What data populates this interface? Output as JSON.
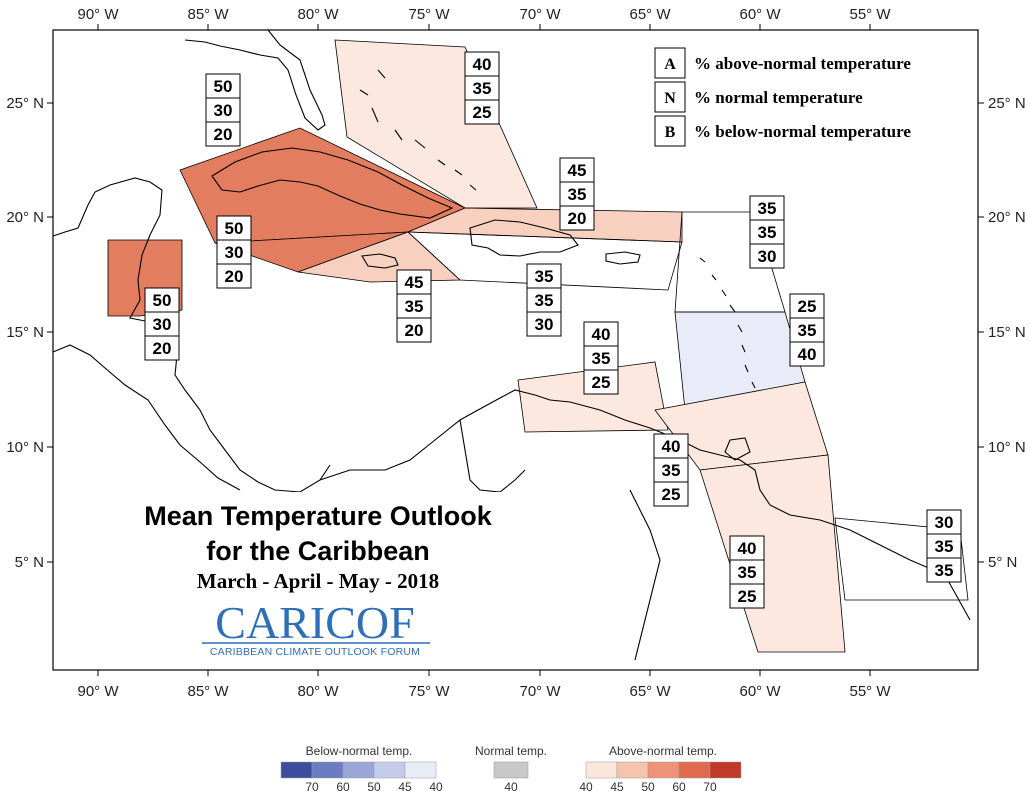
{
  "title_line1": "Mean Temperature Outlook",
  "title_line2": "for the Caribbean",
  "season": "March - April - May - 2018",
  "logo": {
    "main": "CARICOF",
    "sub": "CARIBBEAN CLIMATE OUTLOOK FORUM"
  },
  "axes": {
    "lon_labels": [
      "90° W",
      "85° W",
      "80° W",
      "75° W",
      "70° W",
      "65° W",
      "60° W",
      "55° W"
    ],
    "lat_labels": [
      "25° N",
      "20° N",
      "15° N",
      "10° N",
      "5° N"
    ]
  },
  "key": [
    {
      "letter": "A",
      "text": "% above-normal temperature"
    },
    {
      "letter": "N",
      "text": "% normal temperature"
    },
    {
      "letter": "B",
      "text": "% below-normal temperature"
    }
  ],
  "probability_boxes": [
    {
      "region": "bahamas",
      "values": [
        "40",
        "35",
        "25"
      ]
    },
    {
      "region": "cuba-west",
      "values": [
        "50",
        "30",
        "20"
      ]
    },
    {
      "region": "cuba-south",
      "values": [
        "50",
        "30",
        "20"
      ]
    },
    {
      "region": "belize",
      "values": [
        "50",
        "30",
        "20"
      ]
    },
    {
      "region": "jamaica",
      "values": [
        "45",
        "35",
        "20"
      ]
    },
    {
      "region": "turks-caicos",
      "values": [
        "45",
        "35",
        "20"
      ]
    },
    {
      "region": "hispaniola-pr",
      "values": [
        "35",
        "35",
        "30"
      ]
    },
    {
      "region": "northern-islands",
      "values": [
        "35",
        "35",
        "30"
      ]
    },
    {
      "region": "windward-islands",
      "values": [
        "25",
        "35",
        "40"
      ]
    },
    {
      "region": "abc-islands",
      "values": [
        "40",
        "35",
        "25"
      ]
    },
    {
      "region": "trinidad",
      "values": [
        "40",
        "35",
        "25"
      ]
    },
    {
      "region": "guyana",
      "values": [
        "40",
        "35",
        "25"
      ]
    },
    {
      "region": "french-guiana",
      "values": [
        "30",
        "35",
        "35"
      ]
    }
  ],
  "colorbar": {
    "below": {
      "label": "Below-normal temp.",
      "ticks": [
        "70",
        "60",
        "50",
        "45",
        "40"
      ],
      "colors": [
        "#3b4d9c",
        "#6b7cc3",
        "#9aa6d8",
        "#c5cceb",
        "#e8ecf8"
      ]
    },
    "normal": {
      "label": "Normal temp.",
      "ticks": [
        "40"
      ],
      "colors": [
        "#c8c8c8"
      ]
    },
    "above": {
      "label": "Above-normal temp.",
      "ticks": [
        "40",
        "45",
        "50",
        "60",
        "70"
      ],
      "colors": [
        "#fbe6dc",
        "#f6c3ad",
        "#ef9378",
        "#e06a4d",
        "#c0392b"
      ]
    }
  },
  "colors": {
    "above_40": "#fce8de",
    "above_45": "#f8d0c0",
    "above_50": "#e37d5f",
    "below_40": "#e9ecf8"
  }
}
